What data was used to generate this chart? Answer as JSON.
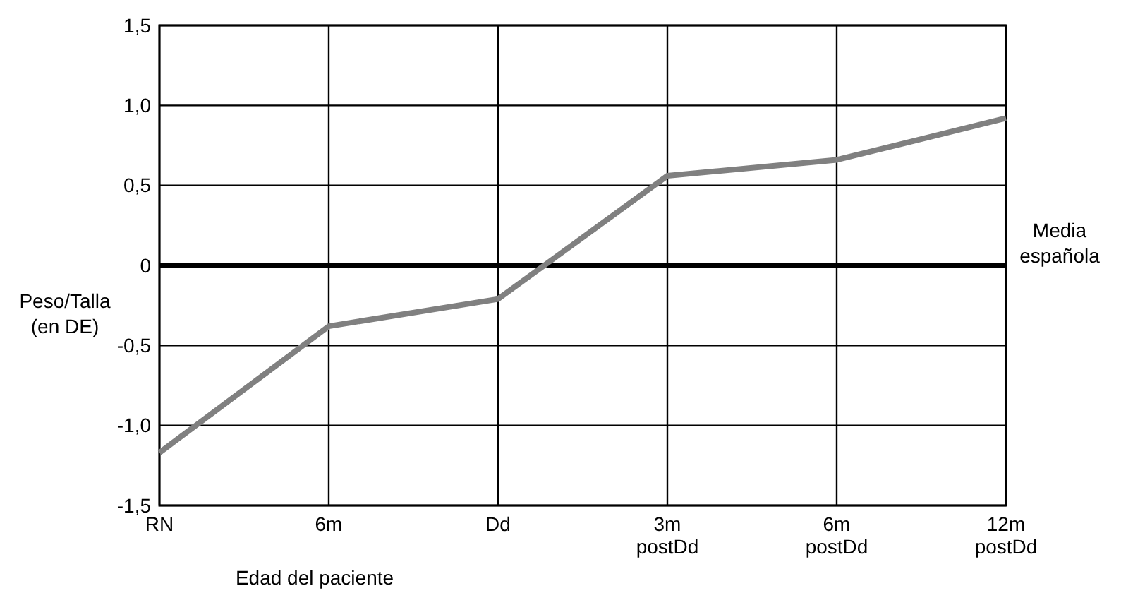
{
  "chart_data": {
    "type": "line",
    "xlabel": "Edad del paciente",
    "ylabel": "Peso/Talla (en DE)",
    "categories": [
      "RN",
      "6m",
      "Dd",
      "3m postDd",
      "6m postDd",
      "12m postDd"
    ],
    "series": [
      {
        "color": "#808080",
        "values": [
          -1.17,
          -0.38,
          -0.21,
          0.56,
          0.66,
          0.92
        ]
      }
    ],
    "ylim": [
      -1.5,
      1.5
    ],
    "yticks": [
      {
        "value": -1.5,
        "label": "-1,5"
      },
      {
        "value": -1,
        "label": "-1,0"
      },
      {
        "value": -0.5,
        "label": "-0,5"
      },
      {
        "value": 0,
        "label": "0"
      },
      {
        "value": 0.5,
        "label": "0,5"
      },
      {
        "value": 1,
        "label": "1,0"
      },
      {
        "value": 1.5,
        "label": "1,5"
      }
    ],
    "grid": true,
    "marker": "none",
    "line_style": "solid",
    "ref_lines": [
      {
        "axis": "y",
        "value": 0,
        "label": "Media española",
        "color": "#000000"
      }
    ]
  }
}
